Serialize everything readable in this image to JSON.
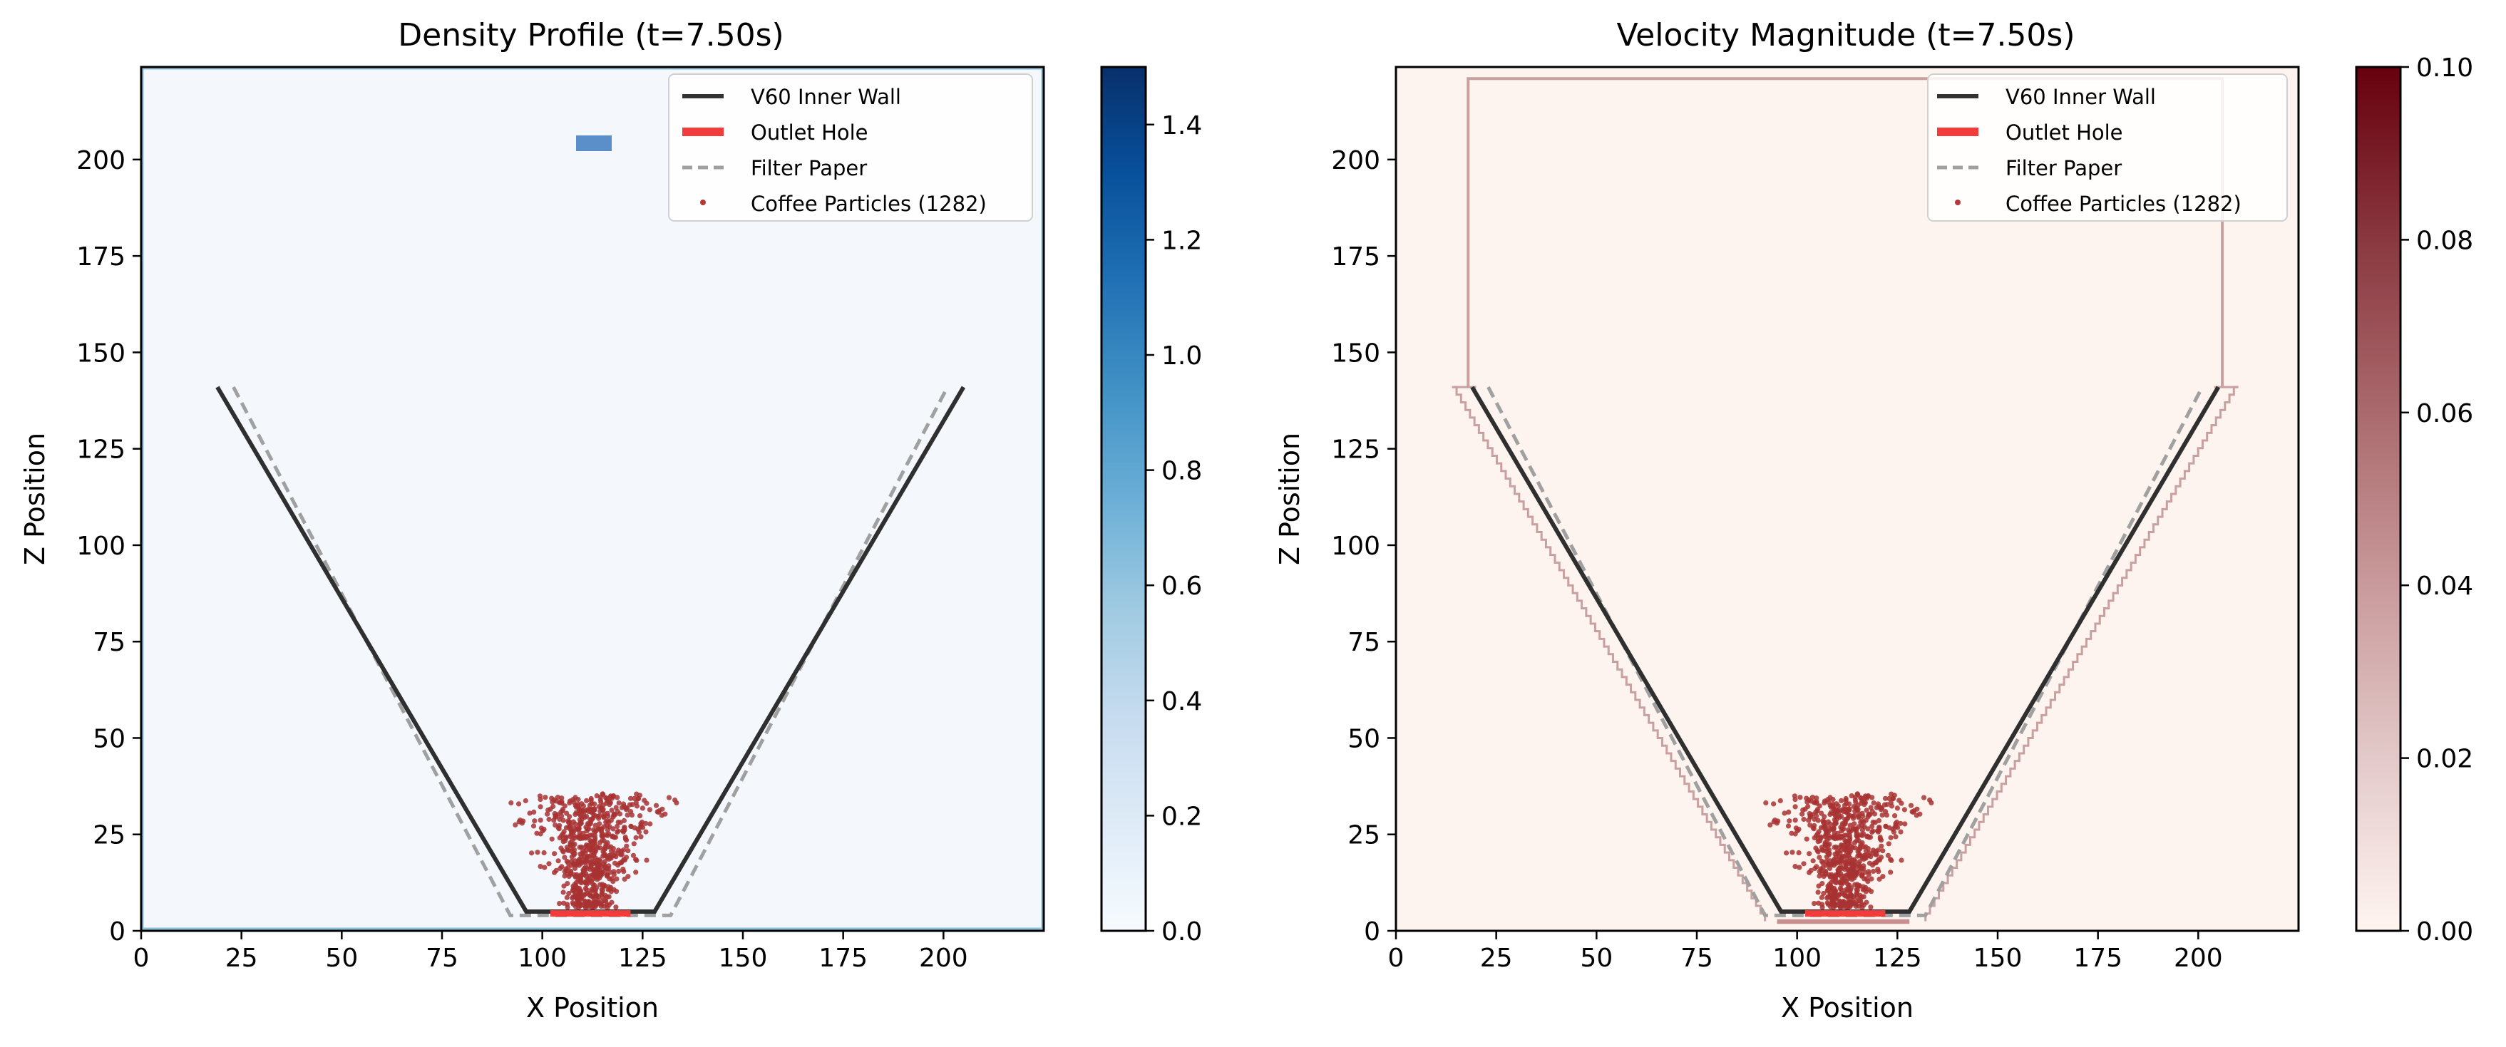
{
  "chart_data": [
    {
      "type": "heatmap",
      "title": "Density Profile (t=7.50s)",
      "xlabel": "X Position",
      "ylabel": "Z Position",
      "xlim": [
        0,
        225
      ],
      "ylim": [
        0,
        224
      ],
      "xticks": [
        0,
        25,
        50,
        75,
        100,
        125,
        150,
        175,
        200
      ],
      "yticks": [
        0,
        25,
        50,
        75,
        100,
        125,
        150,
        175,
        200
      ],
      "colormap": "Blues",
      "colorbar": {
        "min": 0.0,
        "max": 1.5,
        "ticks": [
          "0.0",
          "0.2",
          "0.4",
          "0.6",
          "0.8",
          "1.0",
          "1.2",
          "1.4"
        ]
      },
      "background_value": 0.02,
      "features": [
        {
          "name": "injected water block",
          "x": [
            108,
            117
          ],
          "z": [
            202,
            206
          ],
          "value": 0.95
        }
      ],
      "legend": {
        "placement": "top-right",
        "entries": [
          {
            "label": "V60 Inner Wall",
            "style": "line",
            "color": "#333333"
          },
          {
            "label": "Outlet Hole",
            "style": "thick-line",
            "color": "#f23b3b"
          },
          {
            "label": "Filter Paper",
            "style": "dashed",
            "color": "#a0a0a0"
          },
          {
            "label": "Coffee Particles (1282)",
            "style": "dot",
            "color": "#b03a3a"
          }
        ]
      },
      "series": [
        {
          "name": "V60 Inner Wall",
          "type": "line",
          "x": [
            19,
            96,
            128,
            205
          ],
          "y": [
            141,
            5,
            5,
            141
          ]
        },
        {
          "name": "Outlet Hole",
          "type": "line",
          "x": [
            102,
            122
          ],
          "y": [
            4.5,
            4.5
          ]
        },
        {
          "name": "Filter Paper",
          "type": "line",
          "x": [
            23,
            92,
            132,
            201
          ],
          "y": [
            141,
            4,
            4,
            141
          ]
        },
        {
          "name": "Coffee Particles (1282)",
          "type": "scatter",
          "count": 1282,
          "x_range": [
            92,
            132
          ],
          "z_range": [
            5,
            36
          ]
        }
      ]
    },
    {
      "type": "heatmap",
      "title": "Velocity Magnitude (t=7.50s)",
      "xlabel": "X Position",
      "ylabel": "Z Position",
      "xlim": [
        0,
        225
      ],
      "ylim": [
        0,
        224
      ],
      "xticks": [
        0,
        25,
        50,
        75,
        100,
        125,
        150,
        175,
        200
      ],
      "yticks": [
        0,
        25,
        50,
        75,
        100,
        125,
        150,
        175,
        200
      ],
      "colormap": "Reds",
      "colorbar": {
        "min": 0.0,
        "max": 0.1,
        "ticks": [
          "0.00",
          "0.02",
          "0.04",
          "0.06",
          "0.08",
          "0.10"
        ]
      },
      "background_value": 0.002,
      "features": [
        {
          "name": "domain boundary outline",
          "x": [
            18,
            206
          ],
          "z": [
            141,
            221
          ],
          "value": 0.03
        },
        {
          "name": "wall stair-step outline",
          "x": [
            14,
            210
          ],
          "z": [
            2,
            141
          ],
          "value": 0.03
        }
      ],
      "legend": {
        "placement": "top-right",
        "entries": [
          {
            "label": "V60 Inner Wall",
            "style": "line",
            "color": "#333333"
          },
          {
            "label": "Outlet Hole",
            "style": "thick-line",
            "color": "#f23b3b"
          },
          {
            "label": "Filter Paper",
            "style": "dashed",
            "color": "#a0a0a0"
          },
          {
            "label": "Coffee Particles (1282)",
            "style": "dot",
            "color": "#b03a3a"
          }
        ]
      },
      "series": [
        {
          "name": "V60 Inner Wall",
          "type": "line",
          "x": [
            19,
            96,
            128,
            205
          ],
          "y": [
            141,
            5,
            5,
            141
          ]
        },
        {
          "name": "Outlet Hole",
          "type": "line",
          "x": [
            102,
            122
          ],
          "y": [
            4.5,
            4.5
          ]
        },
        {
          "name": "Filter Paper",
          "type": "line",
          "x": [
            23,
            92,
            132,
            201
          ],
          "y": [
            141,
            4,
            4,
            141
          ]
        },
        {
          "name": "Coffee Particles (1282)",
          "type": "scatter",
          "count": 1282,
          "x_range": [
            92,
            132
          ],
          "z_range": [
            5,
            36
          ]
        }
      ]
    }
  ]
}
